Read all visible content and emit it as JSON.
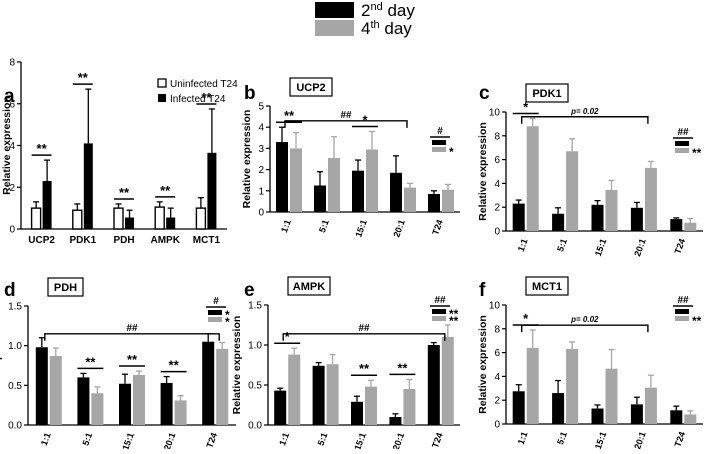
{
  "figure_legend": {
    "entries": [
      {
        "label": "2nd day",
        "sup": "nd",
        "num": "2",
        "rest": " day",
        "color": "#000000"
      },
      {
        "label": "4th day",
        "sup": "th",
        "num": "4",
        "rest": " day",
        "color": "#a6a6a6"
      }
    ]
  },
  "colors": {
    "dark": "#000000",
    "light": "#a6a6a6",
    "white": "#ffffff"
  },
  "chart_data": [
    {
      "id": "a",
      "panel_letter": "a",
      "type": "bar",
      "title": "",
      "ylabel": "Relative expression",
      "xlabel": "",
      "ylim": [
        0,
        8
      ],
      "yticks": [
        "0",
        "2",
        "4",
        "6",
        "8"
      ],
      "categories": [
        "UCP2",
        "PDK1",
        "PDH",
        "AMPK",
        "MCT1"
      ],
      "series": [
        {
          "name": "Uninfected T24",
          "style": "white",
          "values": [
            1.0,
            0.9,
            1.0,
            1.05,
            1.0
          ],
          "errors": [
            0.3,
            0.3,
            0.2,
            0.25,
            0.5
          ]
        },
        {
          "name": "Infected T24",
          "style": "dark",
          "values": [
            2.3,
            4.1,
            0.55,
            0.55,
            3.65
          ],
          "errors": [
            1.0,
            2.6,
            0.35,
            0.45,
            2.1
          ]
        }
      ],
      "legend": [
        "Uninfected T24",
        "Infected T24"
      ],
      "pair_marks": [
        {
          "category": 0,
          "text": "**"
        },
        {
          "category": 1,
          "text": "**"
        },
        {
          "category": 2,
          "text": "**"
        },
        {
          "category": 3,
          "text": "**"
        },
        {
          "category": 4,
          "text": "**"
        }
      ]
    },
    {
      "id": "b",
      "panel_letter": "b",
      "type": "bar",
      "title": "UCP2",
      "ylabel": "Relative expression",
      "xlabel": "",
      "ylim": [
        0,
        5
      ],
      "yticks": [
        "0",
        "1",
        "2",
        "3",
        "4",
        "5"
      ],
      "categories": [
        "1:1",
        "5:1",
        "15:1",
        "20:1",
        "T24"
      ],
      "series": [
        {
          "name": "2nd day",
          "style": "dark",
          "values": [
            3.3,
            1.25,
            1.95,
            1.85,
            0.85
          ],
          "errors": [
            0.7,
            0.65,
            0.5,
            0.8,
            0.15
          ]
        },
        {
          "name": "4th day",
          "style": "light",
          "values": [
            3.0,
            2.55,
            2.95,
            1.15,
            1.05
          ],
          "errors": [
            0.75,
            1.0,
            0.85,
            0.2,
            0.25
          ]
        }
      ],
      "pair_marks": [
        {
          "category": 0,
          "text": "**"
        },
        {
          "category": 2,
          "text": "*"
        }
      ],
      "long_bracket": {
        "from": 0,
        "to": 3,
        "text": "##",
        "y": 4.3
      },
      "legend_stack": {
        "header": "#",
        "dark_text": "",
        "light_text": "*"
      }
    },
    {
      "id": "c",
      "panel_letter": "c",
      "type": "bar",
      "title": "PDK1",
      "ylabel": "Relative expression",
      "xlabel": "",
      "ylim": [
        0,
        10
      ],
      "yticks": [
        "0",
        "2",
        "4",
        "6",
        "8",
        "10"
      ],
      "categories": [
        "1:1",
        "5:1",
        "15:1",
        "20:1",
        "T24"
      ],
      "series": [
        {
          "name": "2nd day",
          "style": "dark",
          "values": [
            2.3,
            1.45,
            2.2,
            1.95,
            1.0
          ],
          "errors": [
            0.3,
            0.5,
            0.35,
            0.45,
            0.1
          ]
        },
        {
          "name": "4th day",
          "style": "light",
          "values": [
            8.8,
            6.7,
            3.45,
            5.3,
            0.7
          ],
          "errors": [
            0.65,
            1.05,
            0.8,
            0.55,
            0.35
          ]
        }
      ],
      "pair_marks": [
        {
          "category": 0,
          "text": "*"
        }
      ],
      "long_bracket": {
        "from": 0,
        "to": 3,
        "text": "p= 0.02",
        "y": 9.6
      },
      "legend_stack": {
        "header": "##",
        "dark_text": "",
        "light_text": "**"
      }
    },
    {
      "id": "d",
      "panel_letter": "d",
      "type": "bar",
      "title": "PDH",
      "ylabel": "Relative expression",
      "xlabel": "",
      "ylim": [
        0,
        1.5
      ],
      "yticks": [
        "0.0",
        "0.5",
        "1.0",
        "1.5"
      ],
      "categories": [
        "1:1",
        "5:1",
        "15:1",
        "20:1",
        "T24"
      ],
      "series": [
        {
          "name": "2nd day",
          "style": "dark",
          "values": [
            0.98,
            0.6,
            0.52,
            0.53,
            1.05
          ],
          "errors": [
            0.12,
            0.05,
            0.12,
            0.08,
            0.1
          ]
        },
        {
          "name": "4th day",
          "style": "light",
          "values": [
            0.87,
            0.4,
            0.63,
            0.31,
            0.96
          ],
          "errors": [
            0.1,
            0.08,
            0.05,
            0.06,
            0.08
          ]
        }
      ],
      "pair_marks": [
        {
          "category": 1,
          "text": "**"
        },
        {
          "category": 2,
          "text": "**"
        },
        {
          "category": 3,
          "text": "**"
        }
      ],
      "long_bracket": {
        "from": 0,
        "to": 4,
        "text": "##",
        "y": 1.15
      },
      "legend_stack": {
        "header": "#",
        "dark_text": "*",
        "light_text": "*"
      }
    },
    {
      "id": "e",
      "panel_letter": "e",
      "type": "bar",
      "title": "AMPK",
      "ylabel": "Relative expression",
      "xlabel": "",
      "ylim": [
        0,
        1.5
      ],
      "yticks": [
        "0.0",
        "0.5",
        "1.0",
        "1.5"
      ],
      "categories": [
        "1:1",
        "5:1",
        "15:1",
        "20:1",
        "T24"
      ],
      "series": [
        {
          "name": "2nd day",
          "style": "dark",
          "values": [
            0.43,
            0.74,
            0.29,
            0.1,
            1.0
          ],
          "errors": [
            0.03,
            0.04,
            0.07,
            0.04,
            0.03
          ]
        },
        {
          "name": "4th day",
          "style": "light",
          "values": [
            0.88,
            0.76,
            0.48,
            0.45,
            1.1
          ],
          "errors": [
            0.08,
            0.12,
            0.08,
            0.12,
            0.15
          ]
        }
      ],
      "pair_marks": [
        {
          "category": 0,
          "text": "*"
        },
        {
          "category": 2,
          "text": "**"
        },
        {
          "category": 3,
          "text": "**"
        }
      ],
      "long_bracket": {
        "from": 0,
        "to": 4,
        "text": "##",
        "y": 1.14
      },
      "legend_stack": {
        "header": "##",
        "dark_text": "**",
        "light_text": "**"
      }
    },
    {
      "id": "f",
      "panel_letter": "f",
      "type": "bar",
      "title": "MCT1",
      "ylabel": "Relative expression",
      "xlabel": "",
      "ylim": [
        0,
        10
      ],
      "yticks": [
        "0",
        "2",
        "4",
        "6",
        "8",
        "10"
      ],
      "categories": [
        "1:1",
        "5:1",
        "15:1",
        "20:1",
        "T24"
      ],
      "series": [
        {
          "name": "2nd day",
          "style": "dark",
          "values": [
            2.75,
            2.6,
            1.3,
            1.65,
            1.15
          ],
          "errors": [
            0.55,
            1.05,
            0.3,
            0.6,
            0.35
          ]
        },
        {
          "name": "4th day",
          "style": "light",
          "values": [
            6.4,
            6.3,
            4.65,
            3.05,
            0.8
          ],
          "errors": [
            1.5,
            0.6,
            1.6,
            1.05,
            0.3
          ]
        }
      ],
      "pair_marks": [
        {
          "category": 0,
          "text": "*"
        }
      ],
      "long_bracket": {
        "from": 0,
        "to": 3,
        "text": "p= 0.02",
        "y": 8.3
      },
      "legend_stack": {
        "header": "##",
        "dark_text": "",
        "light_text": "**"
      }
    }
  ]
}
